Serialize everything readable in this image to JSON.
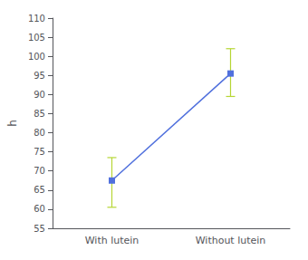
{
  "chart_data": {
    "type": "line",
    "ylabel": "h",
    "categories": [
      "With lutein",
      "Without lutein"
    ],
    "values": [
      67.5,
      95.5
    ],
    "error_lower": [
      7.0,
      6.0
    ],
    "error_upper": [
      6.0,
      6.5
    ],
    "marker": "square",
    "ylim": [
      55,
      110
    ],
    "yticks": [
      55,
      60,
      65,
      70,
      75,
      80,
      85,
      90,
      95,
      100,
      105,
      110
    ],
    "grid": false
  }
}
